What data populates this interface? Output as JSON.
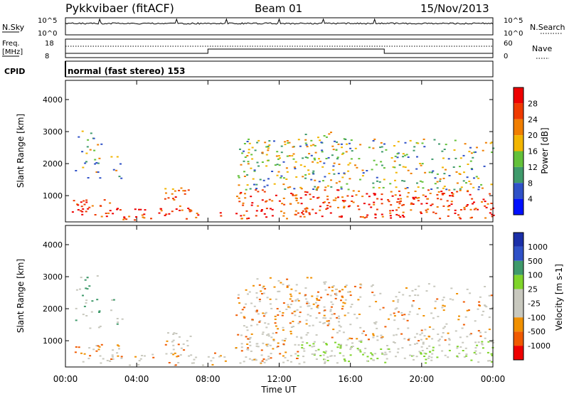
{
  "header": {
    "station": "Pykkvibaer (fitACF)",
    "beam": "Beam 01",
    "date": "15/Nov/2013"
  },
  "noise_panel": {
    "left_label": "N.Sky",
    "right_label": "N.Search",
    "left_ticks": [
      "10^5",
      "10^0"
    ],
    "right_ticks": [
      "10^5",
      "10^0"
    ]
  },
  "freq_panel": {
    "left_label_line1": "Freq.",
    "left_label_line2": "[MHz]",
    "right_label": "Nave",
    "left_ticks": [
      "18",
      "8"
    ],
    "right_ticks": [
      "60",
      "0"
    ]
  },
  "cpid_panel": {
    "label": "CPID",
    "mode_text": "normal (fast stereo) 153"
  },
  "colors": {
    "power": [
      "#0010ff",
      "#2f51c7",
      "#3f9a6b",
      "#63c13a",
      "#f2b500",
      "#f07e00",
      "#ef3a00",
      "#ee0000"
    ],
    "velocity": [
      "#ee0000",
      "#f05a00",
      "#f09000",
      "#c8c8be",
      "#c8c8be",
      "#7fd42a",
      "#3f9a6b",
      "#2f51c7",
      "#1b2fa8"
    ]
  },
  "chart_data": [
    {
      "type": "heatmap",
      "title": "",
      "ylabel": "Slant Range [km]",
      "xlabel": "",
      "x_ticks": [
        "00:00",
        "04:00",
        "08:00",
        "12:00",
        "16:00",
        "20:00",
        "00:00"
      ],
      "y_ticks": [
        "1000",
        "2000",
        "3000",
        "4000"
      ],
      "xlim": [
        0,
        24
      ],
      "ylim": [
        180,
        4600
      ],
      "colorbar_label": "Power [dB]",
      "colorbar_ticks": [
        "4",
        "8",
        "12",
        "16",
        "20",
        "24",
        "28"
      ]
    },
    {
      "type": "heatmap",
      "title": "",
      "ylabel": "Slant Range [km]",
      "xlabel": "Time UT",
      "x_ticks": [
        "00:00",
        "04:00",
        "08:00",
        "12:00",
        "16:00",
        "20:00",
        "00:00"
      ],
      "y_ticks": [
        "1000",
        "2000",
        "3000",
        "4000"
      ],
      "xlim": [
        0,
        24
      ],
      "ylim": [
        180,
        4600
      ],
      "colorbar_label": "Velocity [m s-1]",
      "colorbar_ticks": [
        "1000",
        "500",
        "100",
        "25",
        "-25",
        "-100",
        "-500",
        "-1000"
      ]
    }
  ]
}
